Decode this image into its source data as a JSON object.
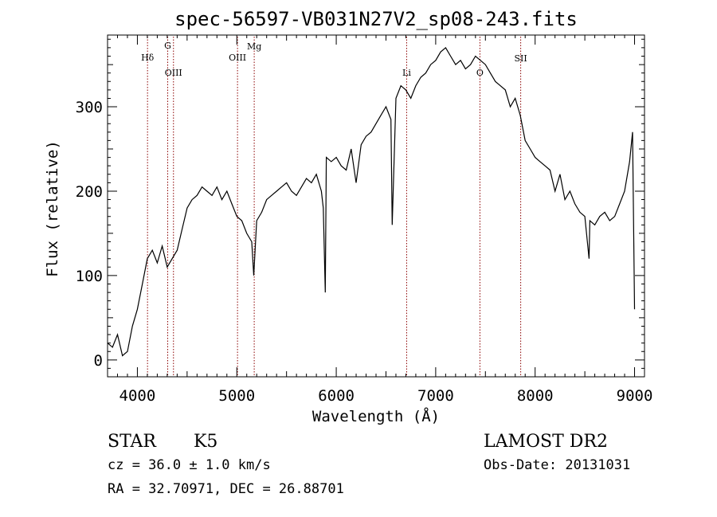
{
  "chart_data": {
    "type": "line",
    "title": "spec-56597-VB031N27V2_sp08-243.fits",
    "xlabel": "Wavelength (Å)",
    "ylabel": "Flux (relative)",
    "xlim": [
      3700,
      9100
    ],
    "ylim": [
      -20,
      385
    ],
    "x_ticks": [
      4000,
      5000,
      6000,
      7000,
      8000,
      9000
    ],
    "x_tick_labels": [
      "4000",
      "5000",
      "6000",
      "7000",
      "8000",
      "9000"
    ],
    "y_ticks": [
      0,
      100,
      200,
      300
    ],
    "y_tick_labels": [
      "0",
      "100",
      "200",
      "300"
    ],
    "grid": false,
    "series": [
      {
        "x": [
          3700,
          3750,
          3800,
          3850,
          3900,
          3950,
          4000,
          4050,
          4100,
          4150,
          4200,
          4250,
          4300,
          4350,
          4400,
          4450,
          4500,
          4550,
          4600,
          4650,
          4700,
          4750,
          4800,
          4850,
          4900,
          4950,
          5000,
          5050,
          5100,
          5150,
          5170,
          5200,
          5250,
          5300,
          5350,
          5400,
          5450,
          5500,
          5550,
          5600,
          5650,
          5700,
          5750,
          5800,
          5850,
          5870,
          5890,
          5900,
          5950,
          6000,
          6050,
          6100,
          6150,
          6200,
          6250,
          6300,
          6350,
          6400,
          6450,
          6500,
          6550,
          6563,
          6600,
          6650,
          6700,
          6750,
          6800,
          6850,
          6900,
          6950,
          7000,
          7050,
          7100,
          7150,
          7200,
          7250,
          7300,
          7350,
          7400,
          7450,
          7500,
          7550,
          7600,
          7650,
          7700,
          7750,
          7800,
          7850,
          7900,
          7950,
          8000,
          8050,
          8100,
          8150,
          8200,
          8250,
          8300,
          8350,
          8400,
          8450,
          8500,
          8542,
          8550,
          8600,
          8650,
          8700,
          8750,
          8800,
          8850,
          8900,
          8950,
          8980,
          9000
        ],
        "y": [
          20,
          15,
          30,
          5,
          10,
          40,
          60,
          90,
          120,
          130,
          115,
          135,
          110,
          120,
          130,
          155,
          180,
          190,
          195,
          205,
          200,
          195,
          205,
          190,
          200,
          185,
          170,
          165,
          150,
          140,
          100,
          165,
          175,
          190,
          195,
          200,
          205,
          210,
          200,
          195,
          205,
          215,
          210,
          220,
          200,
          180,
          80,
          240,
          235,
          240,
          230,
          225,
          250,
          210,
          255,
          265,
          270,
          280,
          290,
          300,
          285,
          160,
          310,
          325,
          320,
          310,
          325,
          335,
          340,
          350,
          355,
          365,
          370,
          360,
          350,
          355,
          345,
          350,
          360,
          355,
          350,
          340,
          330,
          325,
          320,
          300,
          310,
          290,
          260,
          250,
          240,
          235,
          230,
          225,
          200,
          220,
          190,
          200,
          185,
          175,
          170,
          120,
          165,
          160,
          170,
          175,
          165,
          170,
          185,
          200,
          235,
          270,
          60
        ]
      }
    ],
    "annotations": [
      {
        "label": "Hδ",
        "x": 4102
      },
      {
        "label": "G",
        "x": 4305
      },
      {
        "label": "OIII",
        "x": 4363
      },
      {
        "label": "OIII",
        "x": 5007
      },
      {
        "label": "Mg",
        "x": 5175
      },
      {
        "label": "Li",
        "x": 6708
      },
      {
        "label": "O",
        "x": 7445
      },
      {
        "label": "SII",
        "x": 7855
      }
    ]
  },
  "info": {
    "object_type": "STAR",
    "spectral_class": "K5",
    "survey": "LAMOST DR2",
    "redshift": "cz = 36.0 ± 1.0 km/s",
    "obs_date": "Obs-Date: 20131031",
    "coords": "RA =  32.70971, DEC =  26.88701"
  },
  "colors": {
    "spectrum": "#000000",
    "line_markers": "#8b0000",
    "axes": "#000000"
  }
}
